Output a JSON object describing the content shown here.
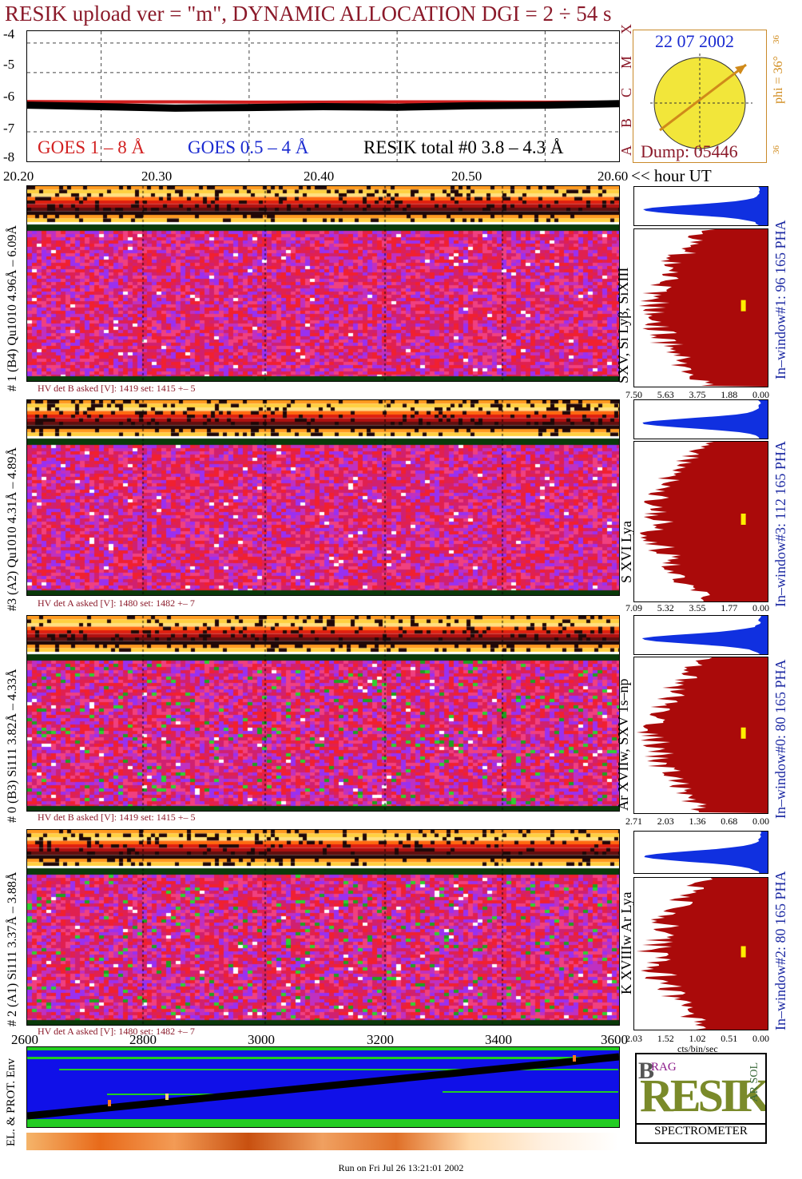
{
  "header": {
    "title": "RESIK upload ver = \"m\", DYNAMIC ALLOCATION  DGI =   2 ÷  54 s"
  },
  "goes_panel": {
    "y_ticks": [
      "-4",
      "-5",
      "-6",
      "-7",
      "-8"
    ],
    "legend_goes18": "GOES 1 – 8 Å",
    "legend_goes054": "GOES 0.5 – 4 Å",
    "legend_resik": "RESIK total #0  3.8 – 4.3 Å",
    "class_letters": [
      "X",
      "M",
      "C",
      "B",
      "A"
    ],
    "colors": {
      "goes18": "#d22020",
      "goes054": "#1a2ad0",
      "resik": "#000000",
      "title": "#8b1a2a"
    }
  },
  "time_axis": {
    "ticks": [
      "20.20",
      "20.30",
      "20.40",
      "20.50",
      "20.60"
    ],
    "unit_label": "<< hour UT"
  },
  "sun_panel": {
    "date": "22 07 2002",
    "phi_label": "phi = 36°",
    "left_value": "36",
    "top_right_value": "36",
    "bottom_right_value": "36",
    "dump": "Dump: 05446"
  },
  "channels": [
    {
      "left_label": "# 1 (B4) Qu1010 4.96Å – 6.09Å",
      "hv": "HV det B asked [V]:  1419 set:  1415  +–    5",
      "lines": "SXV, Si Lyβ, SiXIII",
      "window": "In–window#1:   96 165  PHA",
      "scale": [
        "7.50",
        "5.63",
        "3.75",
        "1.88",
        "0.00"
      ]
    },
    {
      "left_label": "#3 (A2) Qu1010  4.31Å – 4.89Å",
      "hv": "HV det A asked [V]:  1480 set:  1482  +–    7",
      "lines": "S XVI Lya",
      "window": "In–window#3:   112 165  PHA",
      "scale": [
        "7.09",
        "5.32",
        "3.55",
        "1.77",
        "0.00"
      ]
    },
    {
      "left_label": "# 0 (B3) Si111  3.82Å – 4.33Å",
      "hv": "HV det B asked [V]:  1419 set:  1415  +–    5",
      "lines": "Ar XVIIw, SXV 1s–np",
      "window": "In–window#0:   80 165  PHA",
      "scale": [
        "2.71",
        "2.03",
        "1.36",
        "0.68",
        "0.00"
      ]
    },
    {
      "left_label": "# 2 (A1) Si111  3.37Å – 3.88Å",
      "hv": "HV det A asked [V]:  1480 set:  1482  +–    7",
      "lines": "K XVIIIw  Ar Lya",
      "window": "In–window#2:   80 165  PHA",
      "scale": [
        "2.03",
        "1.52",
        "1.02",
        "0.51",
        "0.00"
      ],
      "scale_unit": "cts/bin/sec"
    }
  ],
  "orbit_axis": {
    "ticks": [
      "2600",
      "2800",
      "3000",
      "3200",
      "3400",
      "3600"
    ],
    "left_label": "EL. & PROT. Env"
  },
  "logo": {
    "letters": "RESIK",
    "sub": "SPECTROMETER",
    "small": [
      "B",
      "RAG",
      "SOL",
      "AR"
    ]
  },
  "footer": {
    "run_info": "Run on Fri Jul 26 13:21:01 2002"
  },
  "chart_data": {
    "type": "line",
    "title": "RESIK upload ver = \"m\", DYNAMIC ALLOCATION  DGI =   2 ÷  54 s",
    "xlabel": "<< hour UT",
    "x": [
      20.2,
      20.25,
      20.3,
      20.35,
      20.4,
      20.45,
      20.5,
      20.55,
      20.6
    ],
    "xlim": [
      20.2,
      20.6
    ],
    "ylim": [
      -8,
      -3.6
    ],
    "series": [
      {
        "name": "GOES 1 – 8 Å",
        "color": "#d22020",
        "values": [
          -5.98,
          -5.99,
          -5.99,
          -6.0,
          -6.0,
          -5.99,
          -5.99,
          -6.0,
          -6.0
        ]
      },
      {
        "name": "RESIK total #0  3.8 – 4.3 Å",
        "color": "#000000",
        "values": [
          -6.1,
          -6.15,
          -6.2,
          -6.18,
          -6.15,
          -6.17,
          -6.12,
          -6.1,
          -6.05
        ]
      }
    ],
    "grid": true
  }
}
